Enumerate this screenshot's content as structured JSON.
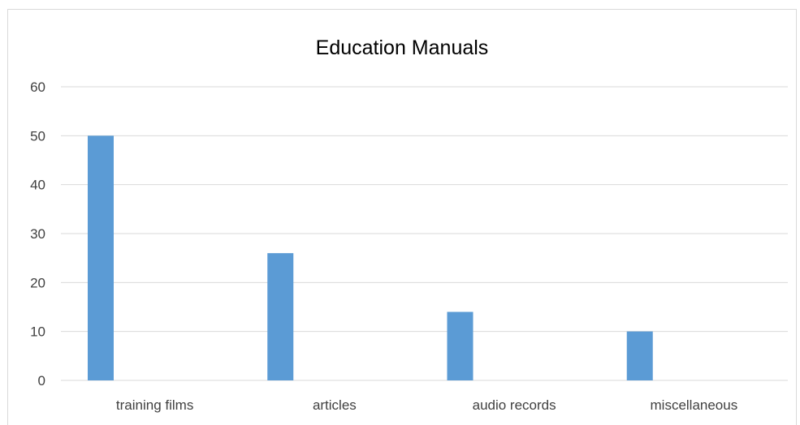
{
  "chart_data": {
    "type": "bar",
    "title": "Education Manuals",
    "xlabel": "",
    "ylabel": "",
    "categories": [
      "training films",
      "articles",
      "audio records",
      "miscellaneous"
    ],
    "values": [
      50,
      26,
      14,
      10
    ],
    "ylim": [
      0,
      60
    ],
    "yticks": [
      0,
      10,
      20,
      30,
      40,
      50,
      60
    ],
    "grid": true,
    "legend": "none",
    "bar_color": "#5b9bd5",
    "grid_color": "#d9d9d9"
  }
}
